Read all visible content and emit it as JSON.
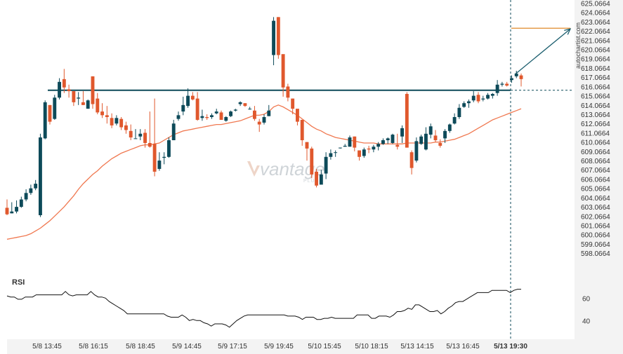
{
  "watermark": "autochartist.com",
  "logo": {
    "name": "vantage",
    "sub": "PLUS"
  },
  "colors": {
    "bull": "#0d4a59",
    "bear": "#e0582d",
    "ma": "#f07850",
    "level": "#0d4a59",
    "target": "#e08a2a",
    "arrow": "#1b5e6e",
    "rsi": "#111111",
    "axis_band": "#f3f3f3"
  },
  "chart_data": {
    "type": "candlestick",
    "ylim": [
      596.0664,
      625.0664
    ],
    "y_ticks": [
      "625.0664",
      "624.0664",
      "623.0664",
      "622.0664",
      "621.0664",
      "620.0664",
      "619.0664",
      "618.0664",
      "617.0664",
      "616.0664",
      "615.0664",
      "614.0664",
      "613.0664",
      "612.0664",
      "611.0664",
      "610.0664",
      "609.0664",
      "608.0664",
      "607.0664",
      "606.0664",
      "605.0664",
      "604.0664",
      "603.0664",
      "602.0664",
      "601.0664",
      "600.0664",
      "599.0664",
      "598.0664"
    ],
    "x_ticks": [
      {
        "label": "5/8 13:45",
        "bold": false
      },
      {
        "label": "5/8 16:15",
        "bold": false
      },
      {
        "label": "5/8 18:45",
        "bold": false
      },
      {
        "label": "5/9 14:45",
        "bold": false
      },
      {
        "label": "5/9 17:15",
        "bold": false
      },
      {
        "label": "5/9 19:45",
        "bold": false
      },
      {
        "label": "5/10 15:45",
        "bold": false
      },
      {
        "label": "5/10 18:15",
        "bold": false
      },
      {
        "label": "5/13 14:15",
        "bold": false
      },
      {
        "label": "5/13 16:45",
        "bold": false
      },
      {
        "label": "5/13 19:30",
        "bold": true
      }
    ],
    "support_level": 615.7,
    "target_level": 622.4,
    "candles": [
      [
        603.0,
        603.9,
        602.3,
        602.2
      ],
      [
        602.4,
        603.6,
        602.6,
        602.4
      ],
      [
        602.6,
        603.8,
        603.1,
        602.4
      ],
      [
        603.1,
        604.2,
        603.9,
        603.0
      ],
      [
        603.9,
        605.0,
        604.6,
        603.7
      ],
      [
        604.6,
        605.5,
        605.1,
        604.4
      ],
      [
        605.1,
        606.0,
        605.6,
        604.9
      ],
      [
        602.2,
        611.0,
        610.6,
        602.0
      ],
      [
        610.5,
        614.6,
        614.4,
        610.4
      ],
      [
        614.1,
        614.1,
        612.3,
        612.0
      ],
      [
        612.6,
        615.2,
        614.9,
        612.5
      ],
      [
        614.9,
        617.0,
        616.6,
        614.7
      ],
      [
        616.9,
        618.0,
        616.0,
        615.4
      ],
      [
        615.8,
        616.3,
        615.6,
        614.9
      ],
      [
        615.6,
        615.6,
        614.4,
        614.0
      ],
      [
        614.8,
        615.5,
        614.9,
        614.1
      ],
      [
        614.4,
        615.6,
        614.1,
        614.1
      ],
      [
        613.7,
        614.7,
        614.6,
        613.7
      ],
      [
        617.2,
        617.2,
        614.2,
        613.7
      ],
      [
        614.8,
        615.4,
        613.3,
        613.1
      ],
      [
        613.4,
        614.3,
        613.0,
        612.7
      ],
      [
        613.0,
        614.0,
        612.8,
        612.1
      ],
      [
        612.7,
        613.2,
        611.9,
        611.6
      ],
      [
        612.1,
        613.0,
        612.7,
        611.9
      ],
      [
        612.6,
        612.8,
        611.7,
        611.4
      ],
      [
        611.9,
        612.3,
        611.4,
        611.0
      ],
      [
        611.3,
        612.0,
        610.6,
        610.3
      ],
      [
        610.5,
        611.5,
        610.5,
        610.5
      ],
      [
        610.7,
        611.5,
        611.0,
        610.3
      ],
      [
        611.1,
        611.5,
        610.0,
        609.5
      ],
      [
        610.0,
        613.4,
        609.6,
        609.5
      ],
      [
        609.9,
        614.8,
        606.9,
        606.4
      ],
      [
        607.2,
        609.0,
        608.1,
        607.0
      ],
      [
        608.4,
        609.0,
        608.5,
        607.7
      ],
      [
        608.5,
        610.6,
        610.3,
        608.4
      ],
      [
        610.3,
        612.5,
        612.1,
        610.3
      ],
      [
        612.6,
        613.4,
        613.0,
        612.4
      ],
      [
        613.4,
        615.0,
        614.1,
        613.0
      ],
      [
        614.0,
        615.9,
        615.1,
        613.8
      ],
      [
        615.1,
        615.5,
        614.7,
        614.6
      ],
      [
        614.8,
        615.5,
        612.5,
        612.4
      ],
      [
        612.7,
        613.6,
        612.9,
        612.4
      ],
      [
        612.8,
        613.1,
        612.7,
        612.5
      ],
      [
        612.8,
        613.2,
        613.0,
        612.6
      ],
      [
        613.2,
        613.7,
        613.4,
        613.1
      ],
      [
        613.3,
        613.5,
        612.5,
        612.5
      ],
      [
        612.4,
        612.9,
        612.8,
        612.3
      ],
      [
        612.9,
        613.5,
        613.4,
        612.8
      ],
      [
        613.5,
        613.7,
        613.6,
        613.4
      ],
      [
        614.2,
        614.5,
        614.4,
        614.0
      ],
      [
        614.3,
        614.3,
        614.0,
        613.9
      ],
      [
        613.7,
        613.9,
        613.7,
        613.6
      ],
      [
        613.5,
        614.0,
        612.6,
        612.4
      ],
      [
        612.3,
        612.6,
        612.0,
        611.2
      ],
      [
        612.2,
        613.1,
        612.8,
        612.0
      ],
      [
        612.9,
        614.1,
        613.5,
        612.9
      ],
      [
        619.5,
        623.6,
        623.2,
        618.4
      ],
      [
        623.6,
        623.6,
        619.5,
        619.1
      ],
      [
        619.6,
        616.4,
        616.0,
        615.0
      ],
      [
        616.1,
        616.4,
        614.9,
        614.5
      ],
      [
        614.8,
        614.8,
        613.7,
        613.1
      ],
      [
        613.7,
        613.6,
        612.3,
        611.9
      ],
      [
        612.5,
        612.5,
        610.3,
        609.7
      ],
      [
        610.1,
        610.1,
        609.4,
        608.1
      ],
      [
        609.4,
        609.6,
        606.6,
        606.2
      ],
      [
        606.9,
        607.2,
        605.4,
        605.2
      ],
      [
        605.5,
        607.1,
        606.6,
        605.6
      ],
      [
        606.7,
        609.0,
        608.5,
        606.1
      ],
      [
        608.5,
        609.3,
        608.9,
        608.2
      ],
      [
        609.0,
        609.2,
        609.0,
        608.5
      ],
      [
        609.5,
        609.5,
        609.5,
        609.4
      ],
      [
        609.6,
        609.9,
        609.7,
        609.6
      ],
      [
        609.6,
        610.8,
        610.6,
        609.6
      ],
      [
        610.7,
        610.7,
        609.5,
        609.1
      ],
      [
        609.2,
        609.2,
        608.5,
        608.1
      ],
      [
        608.6,
        609.5,
        609.3,
        608.4
      ],
      [
        609.4,
        609.7,
        609.3,
        608.9
      ],
      [
        609.3,
        609.8,
        609.6,
        609.0
      ],
      [
        609.6,
        610.1,
        609.9,
        609.2
      ],
      [
        609.9,
        610.5,
        610.3,
        609.8
      ],
      [
        610.3,
        610.6,
        610.5,
        609.9
      ],
      [
        610.0,
        611.0,
        610.9,
        609.9
      ],
      [
        609.8,
        611.0,
        609.6,
        609.3
      ],
      [
        610.7,
        611.9,
        611.6,
        610.0
      ],
      [
        615.3,
        615.5,
        609.5,
        609.5
      ],
      [
        609.0,
        609.2,
        607.3,
        606.6
      ],
      [
        608.1,
        610.6,
        610.2,
        607.9
      ],
      [
        609.9,
        610.9,
        610.7,
        609.8
      ],
      [
        609.3,
        611.7,
        611.0,
        609.2
      ],
      [
        610.9,
        612.1,
        611.8,
        610.5
      ],
      [
        610.8,
        611.4,
        610.3,
        610.1
      ],
      [
        610.0,
        610.4,
        609.7,
        609.5
      ],
      [
        610.5,
        611.5,
        611.3,
        610.0
      ],
      [
        611.3,
        612.1,
        612.0,
        611.1
      ],
      [
        612.1,
        613.2,
        612.8,
        612.0
      ],
      [
        612.8,
        614.2,
        613.8,
        612.6
      ],
      [
        613.9,
        614.5,
        614.3,
        613.8
      ],
      [
        614.3,
        614.7,
        614.5,
        613.8
      ],
      [
        614.6,
        615.6,
        615.1,
        614.4
      ],
      [
        615.2,
        615.5,
        614.5,
        614.3
      ],
      [
        614.7,
        615.1,
        614.8,
        614.5
      ],
      [
        614.8,
        615.4,
        615.2,
        614.7
      ],
      [
        615.1,
        615.4,
        615.3,
        614.8
      ],
      [
        615.4,
        616.8,
        616.3,
        615.1
      ],
      [
        616.3,
        616.6,
        616.4,
        616.1
      ],
      [
        616.4,
        616.6,
        616.2,
        616.1
      ],
      [
        616.8,
        617.3,
        617.0,
        616.5
      ],
      [
        617.2,
        617.8,
        617.5,
        617.0
      ],
      [
        617.3,
        617.5,
        616.9,
        616.1
      ]
    ],
    "ma": [
      599.6,
      599.7,
      599.8,
      599.9,
      600.0,
      600.2,
      600.5,
      600.8,
      601.2,
      601.6,
      602.1,
      602.6,
      603.1,
      603.7,
      604.3,
      605.0,
      605.6,
      606.1,
      606.6,
      607.0,
      607.5,
      607.9,
      608.3,
      608.6,
      608.9,
      609.1,
      609.3,
      609.5,
      609.7,
      609.8,
      609.8,
      609.9,
      610.0,
      610.3,
      610.6,
      610.9,
      611.1,
      611.3,
      611.4,
      611.5,
      611.6,
      611.7,
      611.8,
      611.9,
      612.0,
      612.0,
      612.1,
      612.2,
      612.3,
      612.4,
      612.6,
      612.8,
      613.0,
      613.0,
      613.1,
      613.4,
      613.9,
      614.1,
      613.9,
      613.6,
      613.3,
      613.0,
      612.6,
      612.2,
      611.8,
      611.5,
      611.3,
      611.0,
      610.8,
      610.6,
      610.5,
      610.4,
      610.3,
      610.2,
      610.1,
      610.0,
      610.0,
      610.0,
      609.9,
      609.9,
      609.9,
      609.9,
      609.9,
      609.9,
      610.0,
      610.0,
      610.0,
      610.0,
      610.0,
      610.0,
      610.1,
      610.1,
      610.2,
      610.3,
      610.4,
      610.6,
      610.8,
      611.0,
      611.3,
      611.6,
      611.9,
      612.2,
      612.5,
      612.7,
      612.9,
      613.1,
      613.3,
      613.5,
      613.7
    ],
    "rsi": {
      "title": "RSI",
      "ticks": [
        "60",
        "40"
      ],
      "ylim": [
        27,
        74
      ],
      "values": [
        62,
        61,
        61,
        59,
        59,
        61,
        61,
        61,
        63,
        63,
        63,
        63,
        63,
        63,
        63,
        63,
        66,
        63,
        62,
        63,
        63,
        63,
        63,
        66,
        63,
        61,
        61,
        60,
        57,
        55,
        53,
        51,
        49,
        46,
        46,
        46,
        46,
        46,
        46,
        46,
        46,
        46,
        46,
        46,
        44,
        43,
        43,
        43,
        45,
        43,
        40,
        41,
        40,
        40,
        38,
        37,
        35,
        37,
        37,
        37,
        36,
        34,
        37,
        40,
        42,
        44,
        45,
        45,
        45,
        45,
        45,
        45,
        45,
        45,
        45,
        45,
        45,
        44,
        44,
        44,
        43,
        41,
        43,
        43,
        43,
        41,
        41,
        42,
        42,
        43,
        42,
        42,
        42,
        42,
        42,
        42,
        45,
        45,
        45,
        45,
        42,
        42,
        44,
        44,
        44,
        43,
        45,
        48,
        48,
        49,
        51,
        50,
        54,
        54,
        52,
        50,
        48,
        48,
        49,
        46,
        48,
        51,
        53,
        56,
        57,
        57,
        59,
        61,
        63,
        65,
        65,
        65,
        65,
        67,
        67,
        67,
        67,
        67,
        65,
        67,
        68,
        68
      ]
    }
  }
}
